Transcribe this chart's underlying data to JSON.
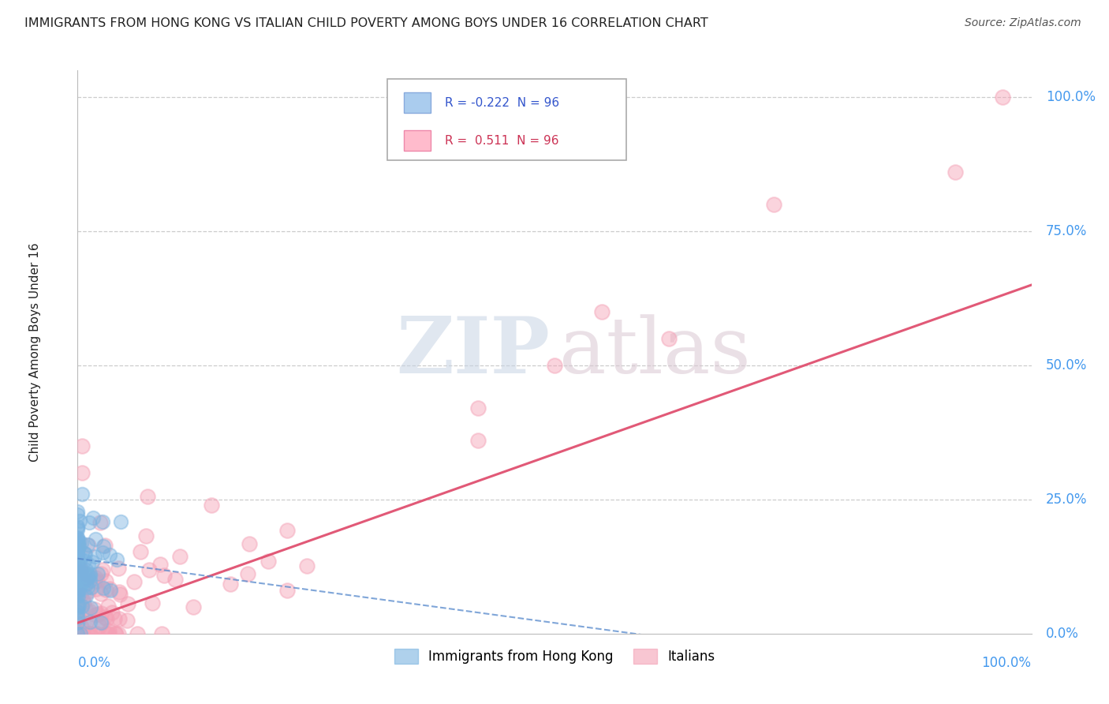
{
  "title": "IMMIGRANTS FROM HONG KONG VS ITALIAN CHILD POVERTY AMONG BOYS UNDER 16 CORRELATION CHART",
  "source": "Source: ZipAtlas.com",
  "ylabel": "Child Poverty Among Boys Under 16",
  "ylabel_ticks": [
    0.0,
    0.25,
    0.5,
    0.75,
    1.0
  ],
  "ylabel_labels": [
    "0.0%",
    "25.0%",
    "50.0%",
    "75.0%",
    "100.0%"
  ],
  "legend_labels": [
    "Immigrants from Hong Kong",
    "Italians"
  ],
  "hk_color": "#7ab3e0",
  "it_color": "#f4a0b5",
  "hk_line_color": "#5588cc",
  "it_line_color": "#e05070",
  "hk_R": -0.222,
  "it_R": 0.511,
  "N": 96,
  "bg_color": "#ffffff",
  "grid_color": "#cccccc",
  "watermark_zip_color": "#cdd5e0",
  "watermark_atlas_color": "#d8c8d0",
  "title_color": "#222222",
  "source_color": "#555555",
  "axis_label_color": "#222222",
  "tick_label_color": "#4499ee"
}
